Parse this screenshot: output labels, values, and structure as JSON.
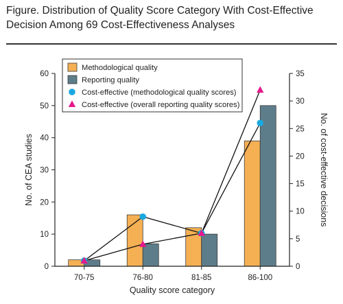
{
  "figure_title": "Figure. Distribution of Quality Score Category With Cost-Effective Decision Among 69 Cost-Effectiveness Analyses",
  "colors": {
    "methodological_bar": "#F5B054",
    "reporting_bar": "#5E7D8A",
    "bar_outline": "#3a3a3a",
    "circle_marker": "#1AA8E0",
    "triangle_marker": "#E5198C",
    "connector_line": "#111111",
    "axis": "#222222"
  },
  "chart_data": {
    "type": "bar",
    "categories": [
      "70-75",
      "76-80",
      "81-85",
      "86-100"
    ],
    "series": [
      {
        "name": "Methodological quality",
        "kind": "bar",
        "axis": "left",
        "values": [
          2,
          16,
          12,
          39
        ]
      },
      {
        "name": "Reporting quality",
        "kind": "bar",
        "axis": "left",
        "values": [
          2,
          7,
          10,
          50
        ]
      },
      {
        "name": "Cost-effective (methodological quality scores)",
        "kind": "marker",
        "marker": "circle",
        "axis": "right",
        "values": [
          1,
          9,
          6,
          26
        ]
      },
      {
        "name": "Cost-effective (overall reporting quality scores)",
        "kind": "marker",
        "marker": "triangle",
        "axis": "right",
        "values": [
          1,
          4,
          6,
          32
        ]
      }
    ],
    "xlabel": "Quality score category",
    "ylabel": "No. of CEA studies",
    "y2label": "No. of cost-effective decisions",
    "ylim": [
      0,
      60
    ],
    "y2lim": [
      0,
      35
    ],
    "yticks": [
      0,
      10,
      20,
      30,
      40,
      50,
      60
    ],
    "y2ticks": [
      0,
      5,
      10,
      15,
      20,
      25,
      30,
      35
    ],
    "grid": false,
    "legend_position": "top-left"
  }
}
